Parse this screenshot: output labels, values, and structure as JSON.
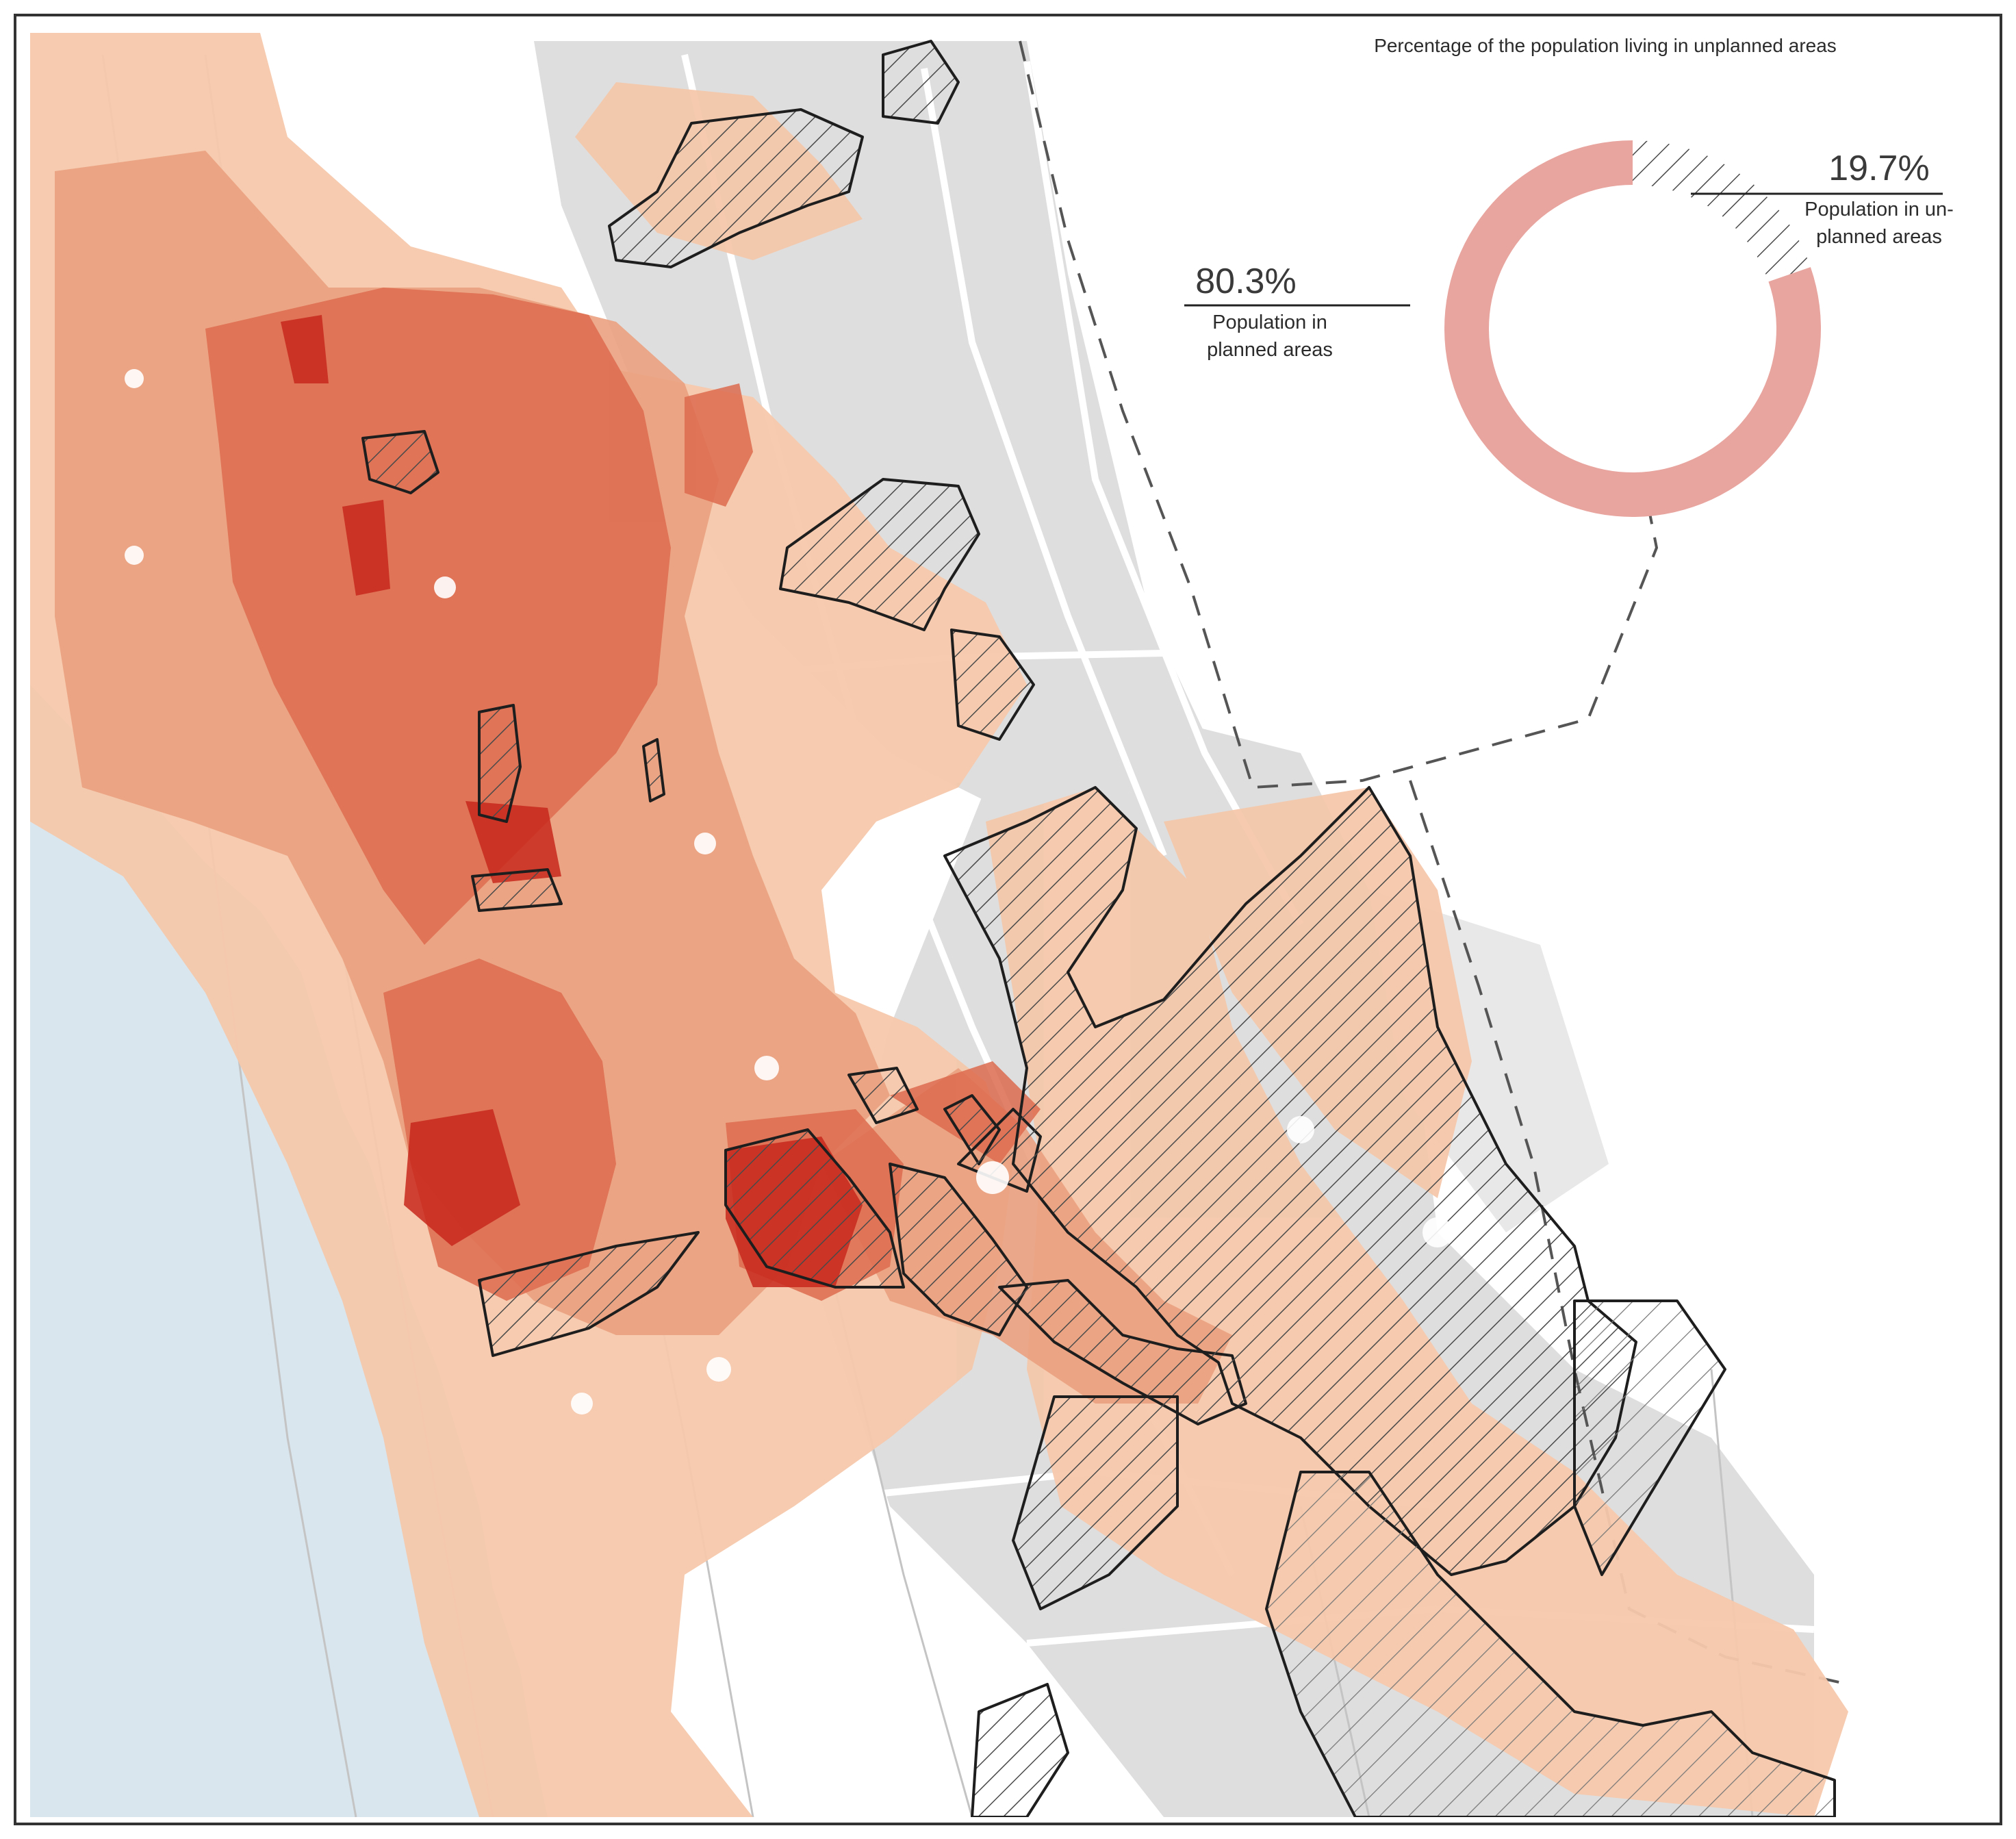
{
  "map": {
    "legend": {
      "title": "Percentage of the population living in unplanned areas"
    },
    "donut": {
      "unplanned": {
        "percent": 19.7,
        "value_label": "19.7%",
        "label_line1": "Population in un-",
        "label_line2": "planned areas"
      },
      "planned": {
        "percent": 80.3,
        "value_label": "80.3%",
        "label_line1": "Population in",
        "label_line2": "planned areas"
      }
    },
    "colors": {
      "planned_ring": "#e8a49e",
      "hatch": "#555555",
      "water": "#d9e6ee",
      "land_gray": "#dcdcdc",
      "density_low": "#f5c8ab",
      "density_mid": "#eba180",
      "density_high": "#dd6b4f",
      "density_max": "#c8281c",
      "boundary": "#1e1e1e"
    }
  }
}
